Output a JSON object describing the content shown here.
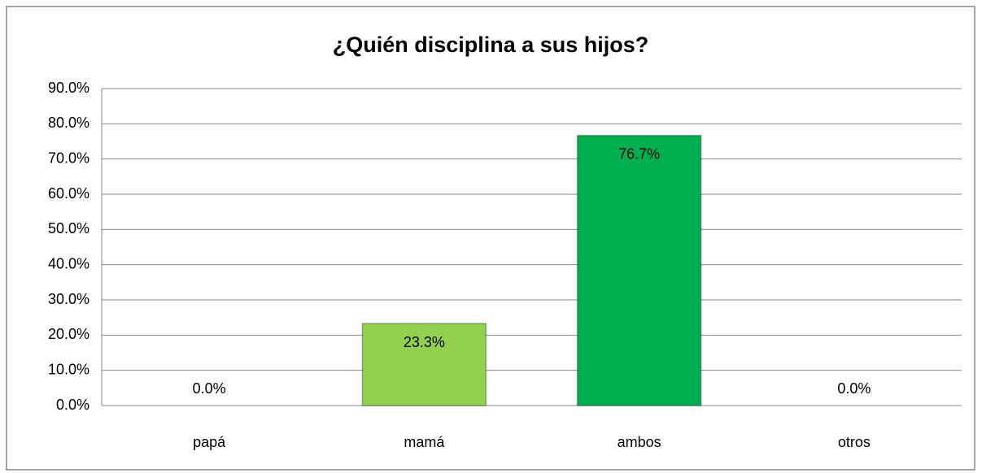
{
  "chart_data": {
    "type": "bar",
    "title": "¿Quién disciplina a sus hijos?",
    "categories": [
      "papá",
      "mamá",
      "ambos",
      "otros"
    ],
    "values": [
      0,
      23.3,
      76.7,
      0
    ],
    "value_labels": [
      "0.0%",
      "23.3%",
      "76.7%",
      "0.0%"
    ],
    "colors": [
      "#92d050",
      "#92d050",
      "#00b050",
      "#00b050"
    ],
    "ylim": [
      0,
      90
    ],
    "yticks": [
      {
        "value": 0,
        "label": "0.0%"
      },
      {
        "value": 10,
        "label": "10.0%"
      },
      {
        "value": 20,
        "label": "20.0%"
      },
      {
        "value": 30,
        "label": "30.0%"
      },
      {
        "value": 40,
        "label": "40.0%"
      },
      {
        "value": 50,
        "label": "50.0%"
      },
      {
        "value": 60,
        "label": "60.0%"
      },
      {
        "value": 70,
        "label": "70.0%"
      },
      {
        "value": 80,
        "label": "80.0%"
      },
      {
        "value": 90,
        "label": "90.0%"
      }
    ],
    "grid": true
  }
}
